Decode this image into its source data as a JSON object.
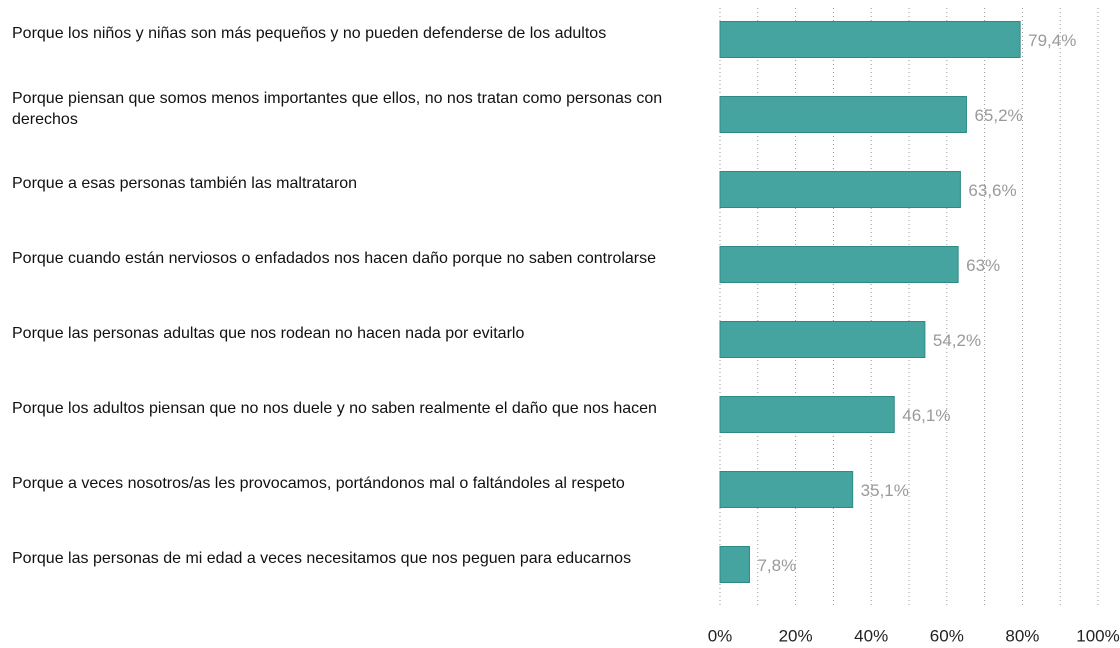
{
  "chart_data": {
    "type": "barh",
    "categories": [
      "Porque los niños y niñas son más pequeños y no pueden defenderse de los adultos",
      "Porque piensan que somos menos importantes que ellos, no nos tratan como personas con derechos",
      "Porque a esas personas también las maltrataron",
      "Porque cuando están nerviosos o enfadados nos hacen daño porque no saben controlarse",
      "Porque las personas adultas que nos rodean no hacen nada por evitarlo",
      "Porque los adultos piensan que no nos duele y no saben realmente el daño que nos hacen",
      "Porque a veces nosotros/as les provocamos, portándonos mal o faltándoles al respeto",
      "Porque las personas de mi edad a veces necesitamos que nos peguen para educarnos"
    ],
    "values": [
      79.4,
      65.2,
      63.6,
      63,
      54.2,
      46.1,
      35.1,
      7.8
    ],
    "value_labels": [
      "79,4%",
      "65,2%",
      "63,6%",
      "63%",
      "54,2%",
      "46,1%",
      "35,1%",
      "7,8%"
    ],
    "color": "#45a4a0",
    "xlim": [
      0,
      100
    ],
    "xticks": [
      {
        "value": 0,
        "label": "0%"
      },
      {
        "value": 20,
        "label": "20%"
      },
      {
        "value": 40,
        "label": "40%"
      },
      {
        "value": 60,
        "label": "60%"
      },
      {
        "value": 80,
        "label": "80%"
      },
      {
        "value": 100,
        "label": "100%"
      }
    ],
    "minor_xticks": [
      10,
      30,
      50,
      70,
      90
    ],
    "grid": true
  }
}
